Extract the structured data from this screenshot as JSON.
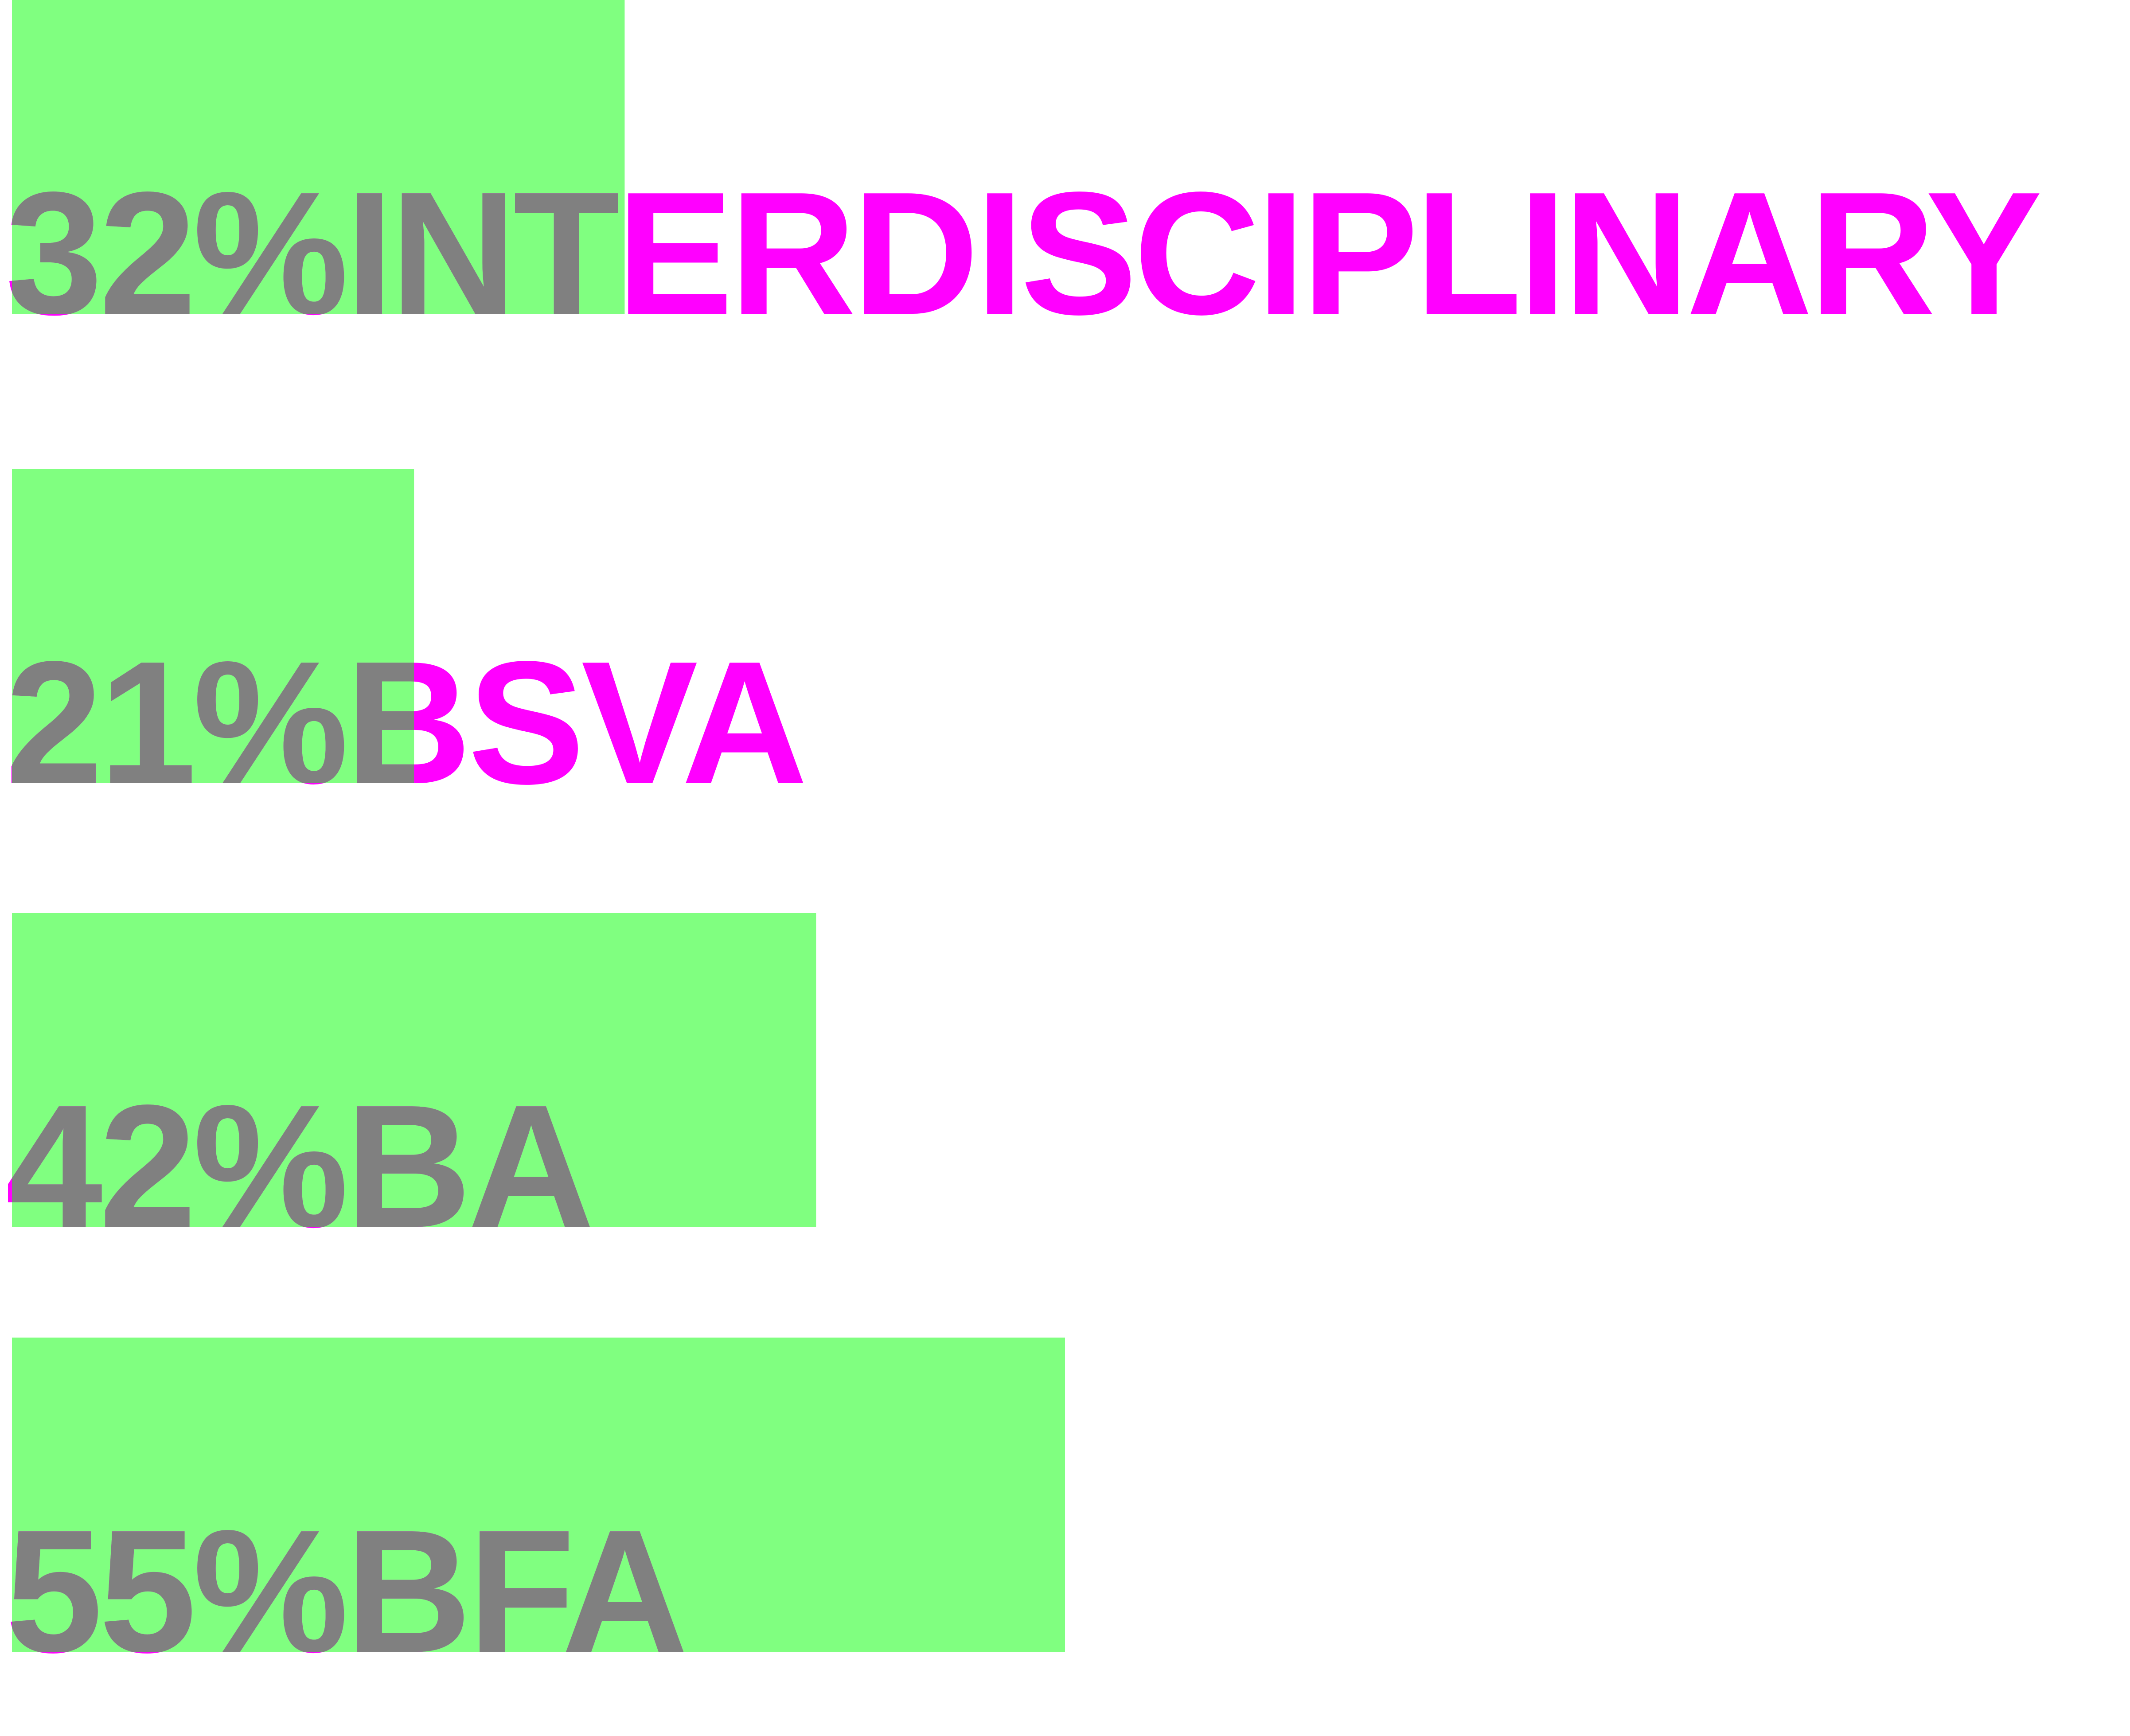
{
  "chart_data": {
    "type": "bar",
    "orientation": "horizontal",
    "categories": [
      "INTERDISCIPLINARY",
      "BSVA",
      "BA",
      "BFA"
    ],
    "series": [
      {
        "values": [
          32,
          21,
          42,
          55
        ],
        "value_labels": [
          "32%",
          "21%",
          "42%",
          "55%"
        ]
      }
    ],
    "unit": "%",
    "xlim": [
      0,
      100
    ],
    "grid": false,
    "legend": "none"
  },
  "colors": {
    "bar": "#80ff80",
    "text": "#ff00ff",
    "text_over_bar": "#808080",
    "background": "#ffffff"
  }
}
